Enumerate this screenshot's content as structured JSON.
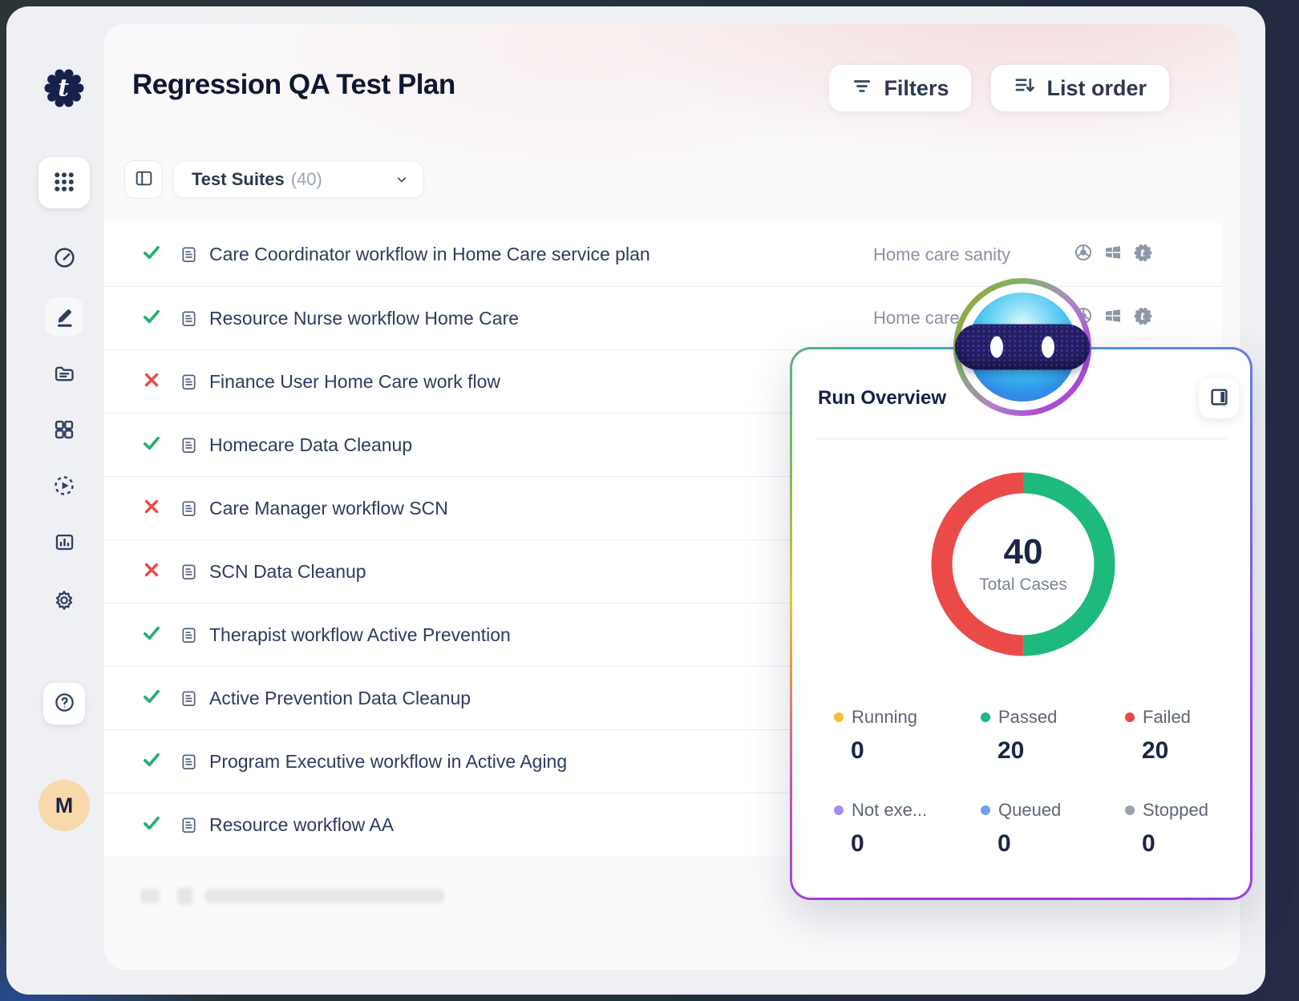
{
  "header": {
    "title": "Regression QA Test Plan",
    "filters_label": "Filters",
    "list_order_label": "List order"
  },
  "toolbar": {
    "suites_label": "Test Suites",
    "suites_count": "(40)"
  },
  "sidebar": {
    "avatar_initial": "M",
    "items": [
      "apps-grid",
      "dashboard",
      "editor",
      "folders",
      "blocks",
      "runs",
      "reports",
      "settings",
      "help"
    ]
  },
  "suites": [
    {
      "status": "passed",
      "name": "Care Coordinator workflow in Home Care service plan",
      "config": "Home care sanity",
      "show_platforms": true
    },
    {
      "status": "passed",
      "name": "Resource Nurse workflow Home Care",
      "config": "Home care sanity",
      "show_platforms": true
    },
    {
      "status": "failed",
      "name": "Finance User Home Care work flow",
      "config": "",
      "show_platforms": false
    },
    {
      "status": "passed",
      "name": "Homecare Data Cleanup",
      "config": "",
      "show_platforms": false
    },
    {
      "status": "failed",
      "name": "Care Manager workflow SCN",
      "config": "",
      "show_platforms": false
    },
    {
      "status": "failed",
      "name": "SCN Data Cleanup",
      "config": "",
      "show_platforms": false
    },
    {
      "status": "passed",
      "name": "Therapist workflow Active Prevention",
      "config": "",
      "show_platforms": false
    },
    {
      "status": "passed",
      "name": "Active Prevention Data Cleanup",
      "config": "",
      "show_platforms": false
    },
    {
      "status": "passed",
      "name": "Program Executive workflow in Active Aging",
      "config": "",
      "show_platforms": false
    },
    {
      "status": "passed",
      "name": "Resource workflow AA",
      "config": "",
      "show_platforms": false
    }
  ],
  "run_overview": {
    "title": "Run Overview"
  },
  "chart_data": {
    "type": "pie",
    "title": "Run Overview",
    "center_value": "40",
    "center_label": "Total Cases",
    "total": 40,
    "legend_position": "bottom",
    "series": [
      {
        "name": "Running",
        "value": 0,
        "color": "#f2c230"
      },
      {
        "name": "Passed",
        "value": 20,
        "color": "#1eb97c"
      },
      {
        "name": "Failed",
        "value": 20,
        "color": "#ea4b48"
      },
      {
        "name": "Not exe...",
        "value": 0,
        "color": "#a78bee"
      },
      {
        "name": "Queued",
        "value": 0,
        "color": "#6f9ef2"
      },
      {
        "name": "Stopped",
        "value": 0,
        "color": "#9aa3b0"
      }
    ]
  }
}
